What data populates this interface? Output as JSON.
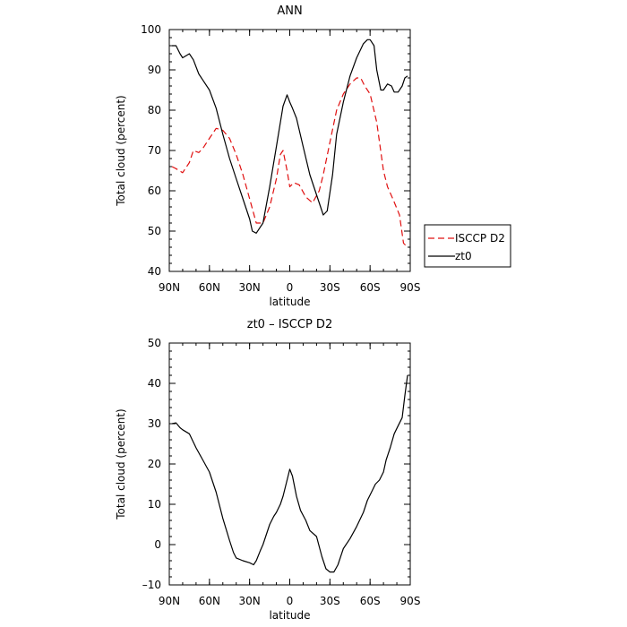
{
  "chart_data": [
    {
      "type": "line",
      "title": "ANN",
      "xlabel": "latitude",
      "ylabel": "Total cloud (percent)",
      "xlim": [
        90,
        -90
      ],
      "ylim": [
        40,
        100
      ],
      "x_ticks": [
        90,
        60,
        30,
        0,
        -30,
        -60,
        -90
      ],
      "x_tick_labels": [
        "90N",
        "60N",
        "30N",
        "0",
        "30S",
        "60S",
        "90S"
      ],
      "y_ticks": [
        40,
        50,
        60,
        70,
        80,
        90,
        100
      ],
      "y_tick_labels": [
        "40",
        "50",
        "60",
        "70",
        "80",
        "90",
        "100"
      ],
      "grid": false,
      "legend_position": "right",
      "series": [
        {
          "name": "ISCCP D2",
          "color": "#e01010",
          "dash": "dashed",
          "x": [
            88,
            85,
            80,
            75,
            72,
            68,
            65,
            60,
            55,
            50,
            45,
            40,
            35,
            30,
            25,
            20,
            15,
            10,
            7,
            5,
            2,
            0,
            -3,
            -7,
            -12,
            -17,
            -22,
            -25,
            -30,
            -35,
            -40,
            -45,
            -50,
            -53,
            -56,
            -60,
            -65,
            -70,
            -73,
            -77,
            -82,
            -85,
            -88
          ],
          "values": [
            66,
            65.5,
            64.5,
            67,
            70,
            69.5,
            70.5,
            73,
            75.5,
            75,
            73,
            69,
            64,
            58,
            52,
            52,
            56,
            63,
            69,
            70,
            65,
            61,
            62,
            61.5,
            58.5,
            57,
            60,
            64,
            72,
            80,
            84,
            86.5,
            88,
            88,
            86,
            84,
            77,
            65,
            61,
            58,
            54,
            47,
            46
          ]
        },
        {
          "name": "zt0",
          "color": "#000000",
          "dash": "solid",
          "x": [
            88,
            85,
            82,
            80,
            75,
            72,
            68,
            65,
            60,
            55,
            50,
            45,
            40,
            35,
            30,
            28,
            25,
            20,
            15,
            10,
            5,
            2,
            0,
            -2,
            -5,
            -10,
            -15,
            -20,
            -25,
            -28,
            -32,
            -35,
            -40,
            -45,
            -50,
            -55,
            -58,
            -60,
            -63,
            -65,
            -68,
            -70,
            -73,
            -76,
            -78,
            -81,
            -84,
            -86,
            -88
          ],
          "values": [
            96,
            96,
            94,
            93,
            94,
            92.5,
            89,
            87.5,
            85,
            80.5,
            74,
            68,
            63,
            58,
            53,
            50,
            49.5,
            52,
            61,
            71,
            81,
            83.8,
            82,
            80.5,
            78,
            71,
            64,
            59,
            54,
            55,
            64,
            74,
            82,
            88.5,
            93,
            96.5,
            97.5,
            97.5,
            96,
            90,
            85,
            85,
            86.5,
            86,
            84.5,
            84.5,
            86,
            88,
            88.5
          ]
        }
      ]
    },
    {
      "type": "line",
      "title": "zt0 – ISCCP D2",
      "xlabel": "latitude",
      "ylabel": "Total cloud (percent)",
      "xlim": [
        90,
        -90
      ],
      "ylim": [
        -10,
        50
      ],
      "x_ticks": [
        90,
        60,
        30,
        0,
        -30,
        -60,
        -90
      ],
      "x_tick_labels": [
        "90N",
        "60N",
        "30N",
        "0",
        "30S",
        "60S",
        "90S"
      ],
      "y_ticks": [
        -10,
        0,
        10,
        20,
        30,
        40,
        50
      ],
      "y_tick_labels": [
        "–10",
        "0",
        "10",
        "20",
        "30",
        "40",
        "50"
      ],
      "grid": false,
      "series": [
        {
          "color": "#000000",
          "dash": "solid",
          "x": [
            88,
            85,
            82,
            80,
            75,
            70,
            65,
            60,
            55,
            50,
            45,
            42,
            40,
            35,
            30,
            27,
            25,
            22,
            20,
            17,
            15,
            12,
            10,
            7,
            5,
            2,
            0,
            -2,
            -5,
            -8,
            -12,
            -15,
            -20,
            -24,
            -27,
            -30,
            -33,
            -36,
            -40,
            -45,
            -50,
            -55,
            -58,
            -61,
            -64,
            -67,
            -70,
            -72,
            -75,
            -78,
            -81,
            -84,
            -86,
            -88
          ],
          "values": [
            30,
            30.2,
            29,
            28.5,
            27.5,
            24,
            21,
            18,
            13,
            6.5,
            1,
            -2,
            -3.3,
            -4,
            -4.5,
            -5,
            -4,
            -1.5,
            0,
            3,
            5,
            7,
            8,
            10,
            12,
            16,
            18.7,
            17,
            12,
            8.5,
            6,
            3.5,
            2,
            -3,
            -6,
            -6.8,
            -6.8,
            -5,
            -1,
            1.5,
            4.5,
            8,
            11,
            13,
            15,
            16,
            18,
            21,
            24,
            27.5,
            29.5,
            31.5,
            37,
            42
          ]
        }
      ]
    }
  ],
  "legend": {
    "items": [
      {
        "label": "ISCCP D2",
        "color": "#e01010",
        "dash": "dashed"
      },
      {
        "label": "zt0",
        "color": "#000000",
        "dash": "solid"
      }
    ]
  }
}
